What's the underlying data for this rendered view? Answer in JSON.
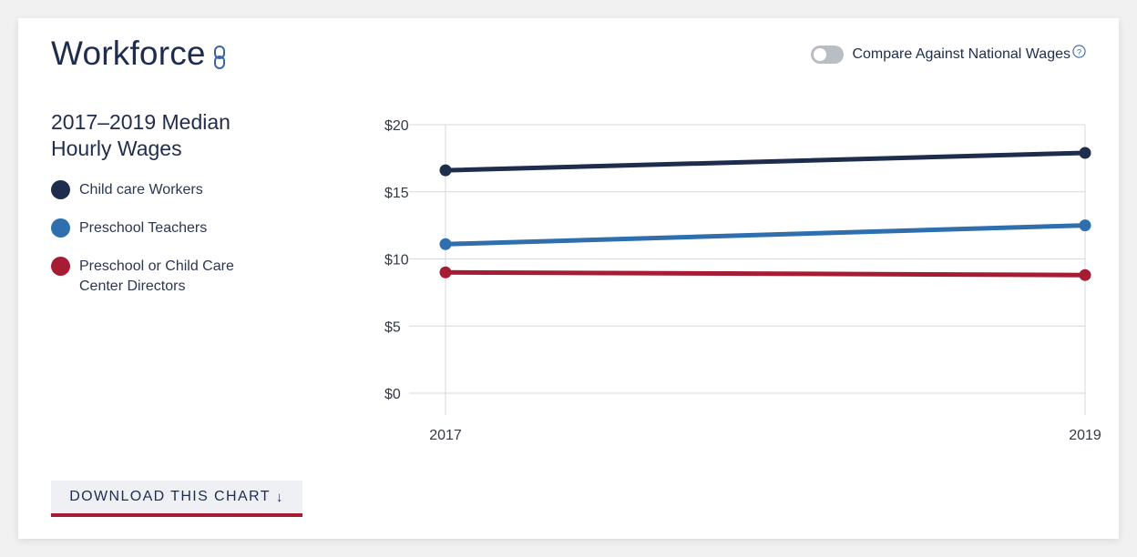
{
  "header": {
    "title": "Workforce",
    "link_icon": "link-icon",
    "toggle_label": "Compare Against National Wages",
    "toggle_on": false,
    "help_icon": "help-icon"
  },
  "chart_data": {
    "type": "line",
    "title": "2017–2019 Median Hourly Wages",
    "xlabel": "",
    "ylabel": "",
    "x": [
      "2017",
      "2019"
    ],
    "ylim": [
      0,
      20
    ],
    "yticks": [
      "$0",
      "$5",
      "$10",
      "$15",
      "$20"
    ],
    "ytick_values": [
      0,
      5,
      10,
      15,
      20
    ],
    "grid": true,
    "legend_position": "left",
    "series": [
      {
        "name": "Child care Workers",
        "values": [
          16.6,
          17.9
        ],
        "color": "#1f2d4d"
      },
      {
        "name": "Preschool Teachers",
        "values": [
          11.1,
          12.5
        ],
        "color": "#2f6fad"
      },
      {
        "name": "Preschool or Child Care Center Directors",
        "values": [
          9.0,
          8.8
        ],
        "color": "#a61c34"
      }
    ]
  },
  "download": {
    "label": "DOWNLOAD THIS CHART",
    "icon": "download-arrow-icon"
  }
}
